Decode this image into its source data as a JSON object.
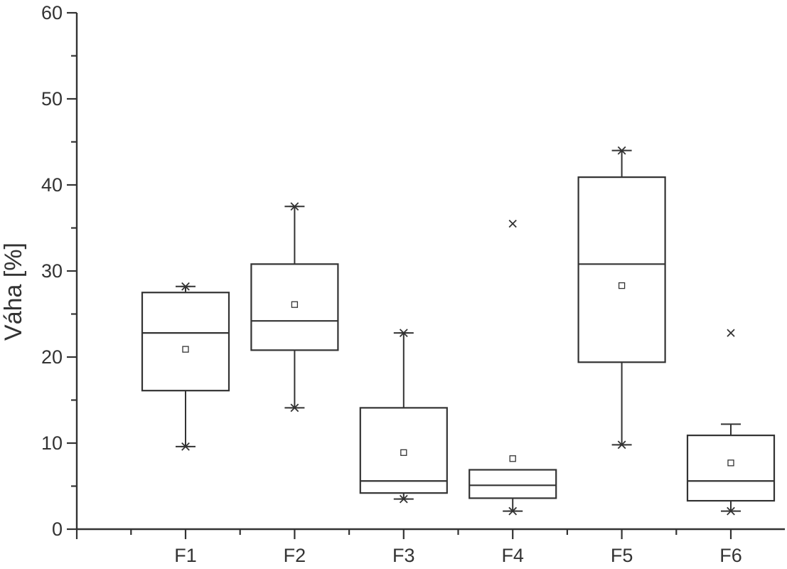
{
  "chart_data": {
    "type": "box",
    "ylabel": "Váha [%]",
    "xlabel": "",
    "ylim": [
      0,
      60
    ],
    "yticks_major": [
      0,
      10,
      20,
      30,
      40,
      50,
      60
    ],
    "yticks_minor": [
      5,
      15,
      25,
      35,
      45,
      55
    ],
    "categories": [
      "F1",
      "F2",
      "F3",
      "F4",
      "F5",
      "F6"
    ],
    "grid": false,
    "legend": "none",
    "boxes": [
      {
        "category": "F1",
        "q1": 16.1,
        "median": 22.8,
        "q3": 27.5,
        "whisker_low": 9.6,
        "whisker_high": 28.2,
        "mean": 20.9,
        "extremes_star": [
          9.6,
          28.2
        ],
        "outliers_x": []
      },
      {
        "category": "F2",
        "q1": 20.8,
        "median": 24.2,
        "q3": 30.8,
        "whisker_low": 14.1,
        "whisker_high": 37.5,
        "mean": 26.1,
        "extremes_star": [
          14.1,
          37.5
        ],
        "outliers_x": []
      },
      {
        "category": "F3",
        "q1": 4.2,
        "median": 5.6,
        "q3": 14.1,
        "whisker_low": 3.5,
        "whisker_high": 22.8,
        "mean": 8.9,
        "extremes_star": [
          3.5,
          22.8
        ],
        "outliers_x": []
      },
      {
        "category": "F4",
        "q1": 3.6,
        "median": 5.1,
        "q3": 6.9,
        "whisker_low": 2.1,
        "whisker_high": 6.9,
        "mean": 8.2,
        "extremes_star": [
          2.1
        ],
        "outliers_x": [
          35.5
        ]
      },
      {
        "category": "F5",
        "q1": 19.4,
        "median": 30.8,
        "q3": 40.9,
        "whisker_low": 9.8,
        "whisker_high": 44.0,
        "mean": 28.3,
        "extremes_star": [
          9.8,
          44.0
        ],
        "outliers_x": []
      },
      {
        "category": "F6",
        "q1": 3.3,
        "median": 5.6,
        "q3": 10.9,
        "whisker_low": 2.1,
        "whisker_high": 12.2,
        "mean": 7.7,
        "extremes_star": [
          2.1
        ],
        "outliers_x": [
          22.8
        ]
      }
    ]
  }
}
